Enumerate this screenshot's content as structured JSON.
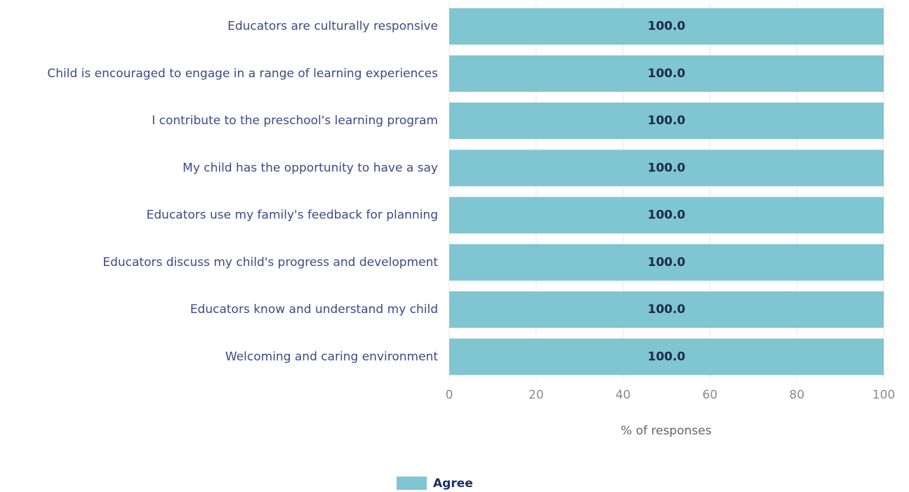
{
  "chart_data": {
    "type": "bar",
    "orientation": "horizontal",
    "categories": [
      "Educators are culturally responsive",
      "Child is encouraged to engage in a range of learning experiences",
      "I contribute to the preschool's learning program",
      "My child has the opportunity to have a say",
      "Educators use my family's feedback for planning",
      "Educators discuss my child's progress and development",
      "Educators know and understand my child",
      "Welcoming and caring environment"
    ],
    "series": [
      {
        "name": "Agree",
        "color": "#80c5d2",
        "values": [
          100,
          100,
          100,
          100,
          100,
          100,
          100,
          100
        ],
        "value_labels": [
          "100.0",
          "100.0",
          "100.0",
          "100.0",
          "100.0",
          "100.0",
          "100.0",
          "100.0"
        ]
      }
    ],
    "xlabel": "% of responses",
    "xlim": [
      0,
      100
    ],
    "xticks": [
      0,
      20,
      40,
      60,
      80,
      100
    ],
    "grid": true,
    "legend": "bottom"
  }
}
